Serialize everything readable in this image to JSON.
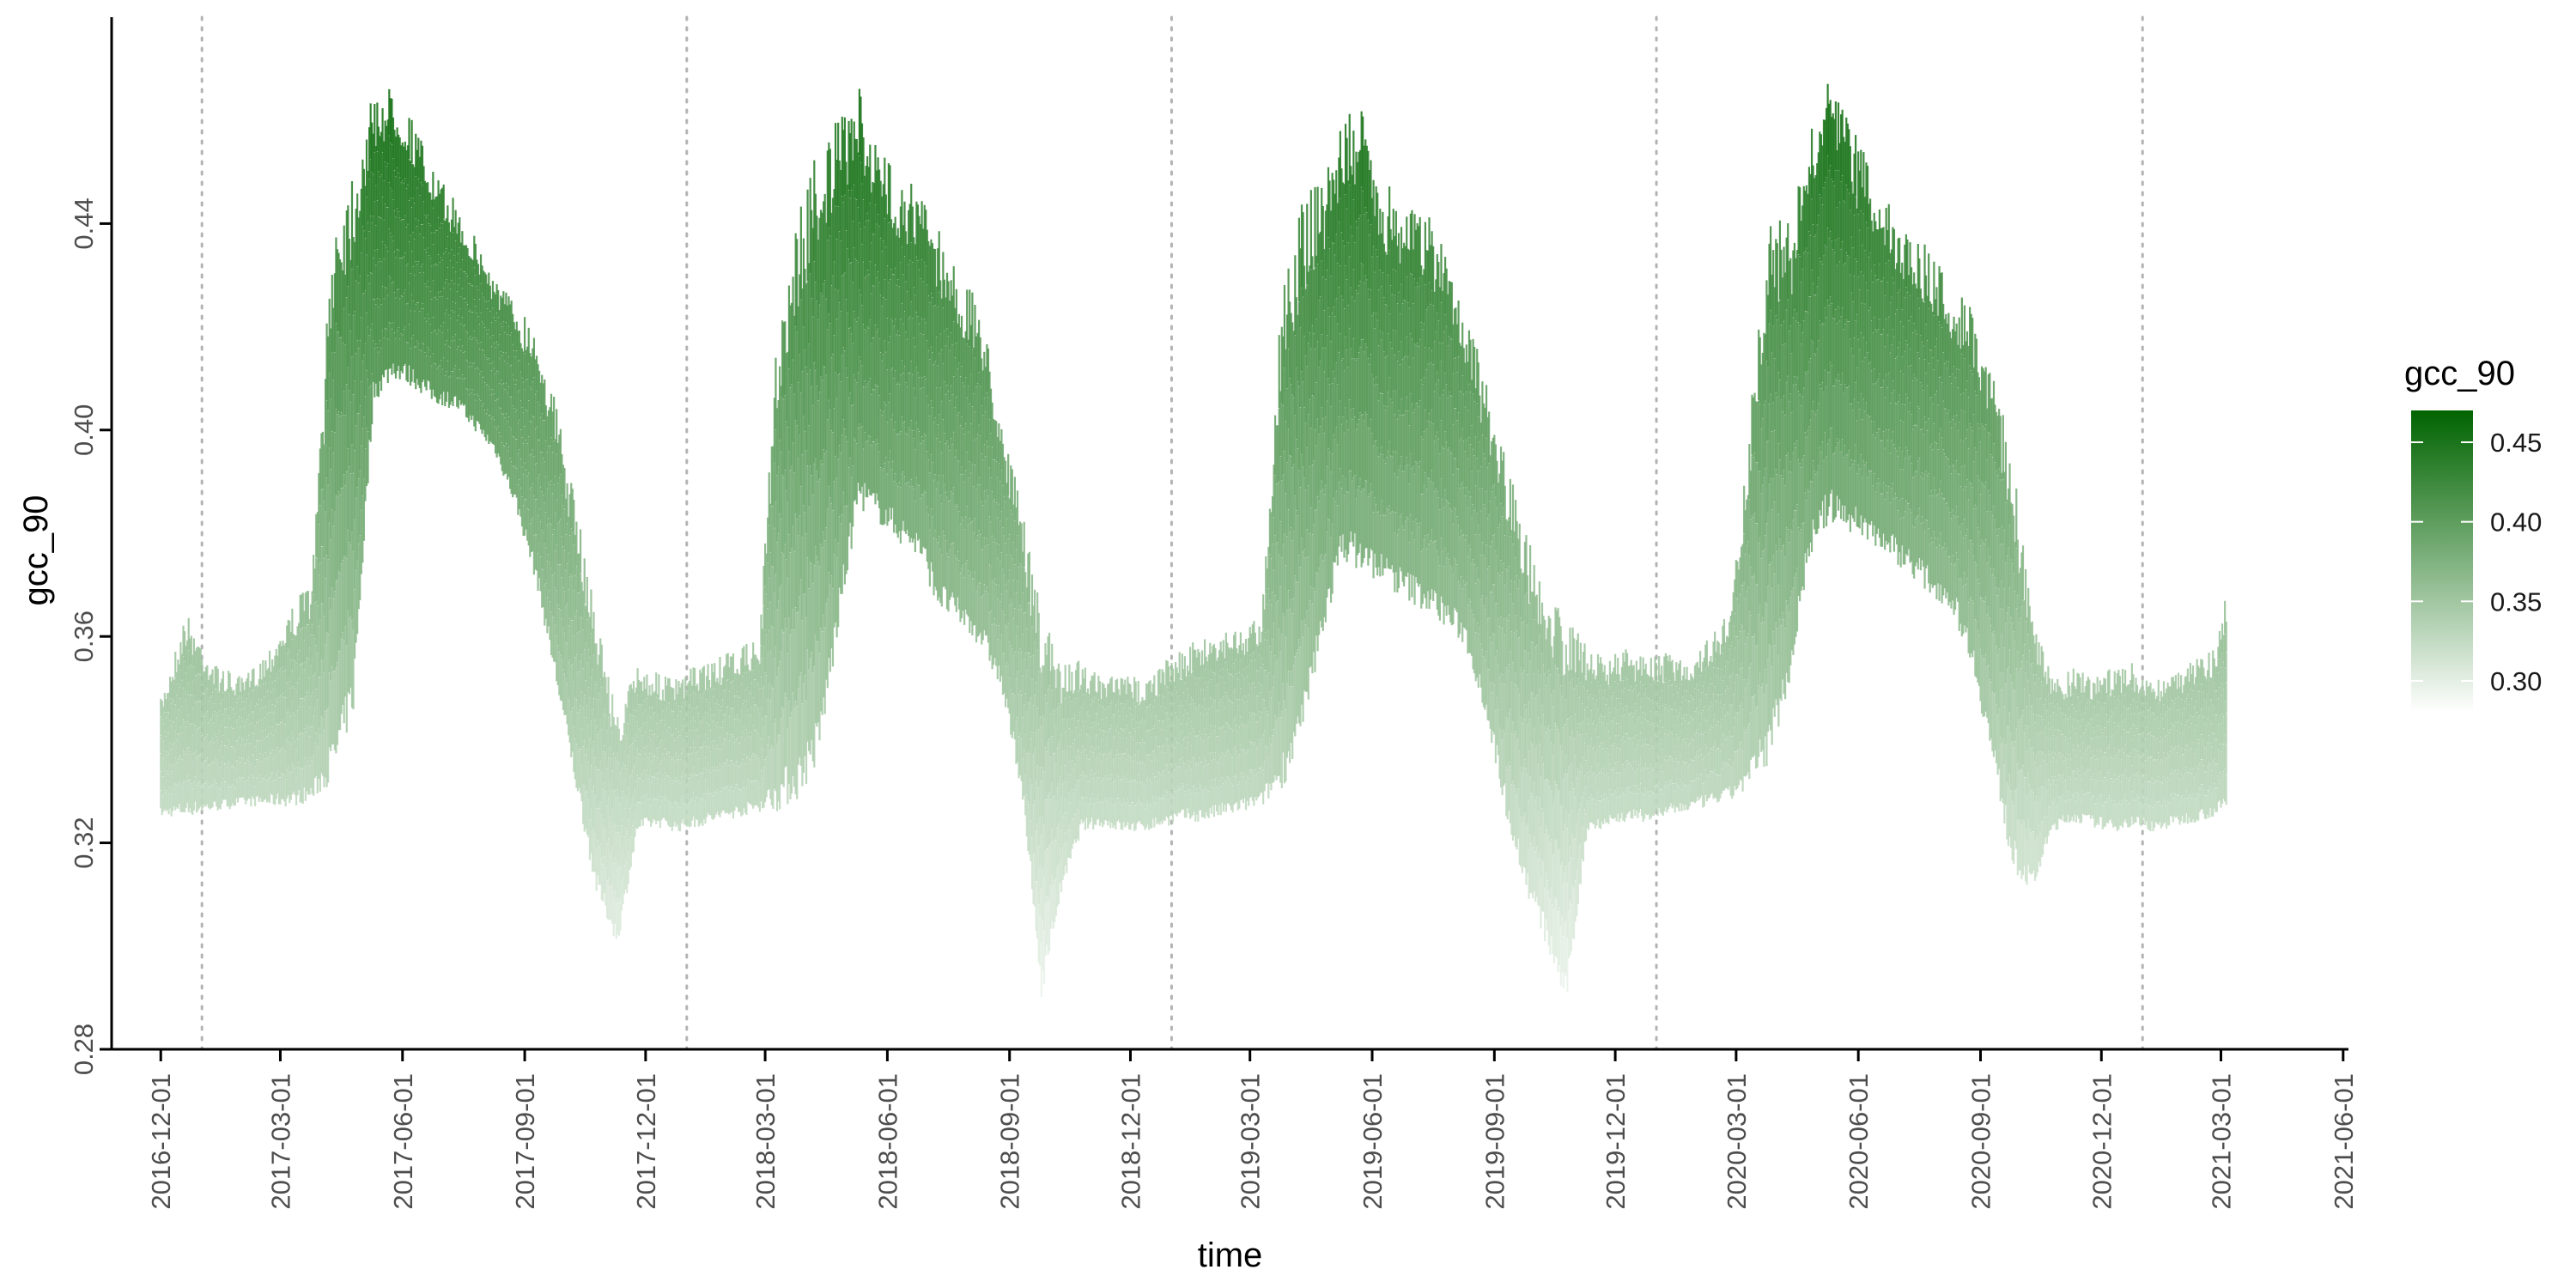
{
  "chart_data": {
    "type": "line",
    "xlabel": "time",
    "ylabel": "gcc_90",
    "xlim": [
      "2016-10-25",
      "2021-06-05"
    ],
    "ylim": [
      0.28,
      0.48
    ],
    "x_ticks": [
      "2016-12-01",
      "2017-03-01",
      "2017-06-01",
      "2017-09-01",
      "2017-12-01",
      "2018-03-01",
      "2018-06-01",
      "2018-09-01",
      "2018-12-01",
      "2019-03-01",
      "2019-06-01",
      "2019-09-01",
      "2019-12-01",
      "2020-03-01",
      "2020-06-01",
      "2020-09-01",
      "2020-12-01",
      "2021-03-01",
      "2021-06-01"
    ],
    "y_ticks": [
      "0.28",
      "0.32",
      "0.36",
      "0.40",
      "0.44"
    ],
    "year_boundaries": [
      "2017-01-01",
      "2018-01-01",
      "2019-01-01",
      "2020-01-01",
      "2021-01-01"
    ],
    "grid": false,
    "legend": {
      "title": "gcc_90",
      "placement": "right",
      "type": "colorbar",
      "labels": [
        "0.45",
        "0.40",
        "0.35",
        "0.30"
      ],
      "range": [
        0.28,
        0.47
      ],
      "color_low": "#ffffff",
      "color_high": "#006400"
    },
    "series": [
      {
        "x": [
          "2016-12-01",
          "2016-12-20",
          "2017-01-10",
          "2017-02-01",
          "2017-02-20",
          "2017-03-10",
          "2017-03-25",
          "2017-04-10",
          "2017-04-25",
          "2017-05-10",
          "2017-05-25",
          "2017-06-10",
          "2017-06-25",
          "2017-07-10",
          "2017-07-25",
          "2017-08-10",
          "2017-08-25",
          "2017-09-10",
          "2017-09-25",
          "2017-10-10",
          "2017-10-25",
          "2017-11-10",
          "2017-11-25",
          "2017-12-10",
          "2017-12-25",
          "2018-01-10",
          "2018-01-25",
          "2018-02-10",
          "2018-02-25",
          "2018-03-10",
          "2018-03-25",
          "2018-04-10",
          "2018-04-25",
          "2018-05-10",
          "2018-05-25",
          "2018-06-10",
          "2018-06-25",
          "2018-07-10",
          "2018-07-25",
          "2018-08-10",
          "2018-08-25",
          "2018-09-10",
          "2018-09-25",
          "2018-10-10",
          "2018-10-25",
          "2018-11-10",
          "2018-11-25",
          "2018-12-10",
          "2018-12-25",
          "2019-01-10",
          "2019-01-25",
          "2019-02-10",
          "2019-02-25",
          "2019-03-10",
          "2019-03-25",
          "2019-04-10",
          "2019-04-25",
          "2019-05-10",
          "2019-05-25",
          "2019-06-10",
          "2019-06-25",
          "2019-07-10",
          "2019-07-25",
          "2019-08-10",
          "2019-08-25",
          "2019-09-10",
          "2019-09-25",
          "2019-10-10",
          "2019-10-25",
          "2019-11-10",
          "2019-11-25",
          "2019-12-10",
          "2019-12-25",
          "2020-01-10",
          "2020-01-25",
          "2020-02-10",
          "2020-02-25",
          "2020-03-10",
          "2020-03-25",
          "2020-04-10",
          "2020-04-25",
          "2020-05-10",
          "2020-05-25",
          "2020-06-10",
          "2020-06-25",
          "2020-07-10",
          "2020-07-25",
          "2020-08-10",
          "2020-08-25",
          "2020-09-10",
          "2020-09-25",
          "2020-10-10",
          "2020-10-25",
          "2020-11-10",
          "2020-11-25",
          "2020-12-10",
          "2020-12-25",
          "2021-01-10",
          "2021-01-25",
          "2021-02-10",
          "2021-02-25",
          "2021-03-05"
        ],
        "min": [
          0.325,
          0.325,
          0.326,
          0.327,
          0.327,
          0.327,
          0.328,
          0.332,
          0.345,
          0.405,
          0.41,
          0.408,
          0.405,
          0.404,
          0.4,
          0.395,
          0.385,
          0.37,
          0.35,
          0.33,
          0.31,
          0.3,
          0.322,
          0.323,
          0.322,
          0.323,
          0.324,
          0.325,
          0.326,
          0.326,
          0.328,
          0.335,
          0.36,
          0.385,
          0.382,
          0.378,
          0.375,
          0.365,
          0.362,
          0.358,
          0.35,
          0.33,
          0.29,
          0.31,
          0.322,
          0.323,
          0.322,
          0.322,
          0.323,
          0.324,
          0.324,
          0.325,
          0.326,
          0.327,
          0.33,
          0.34,
          0.36,
          0.375,
          0.372,
          0.37,
          0.367,
          0.365,
          0.362,
          0.358,
          0.345,
          0.325,
          0.31,
          0.3,
          0.288,
          0.322,
          0.323,
          0.324,
          0.324,
          0.325,
          0.326,
          0.327,
          0.328,
          0.33,
          0.335,
          0.35,
          0.375,
          0.382,
          0.38,
          0.378,
          0.375,
          0.372,
          0.368,
          0.365,
          0.355,
          0.335,
          0.315,
          0.31,
          0.322,
          0.324,
          0.323,
          0.322,
          0.323,
          0.322,
          0.323,
          0.324,
          0.325,
          0.326
        ],
        "max": [
          0.348,
          0.365,
          0.355,
          0.352,
          0.358,
          0.366,
          0.372,
          0.443,
          0.453,
          0.465,
          0.467,
          0.46,
          0.45,
          0.445,
          0.438,
          0.43,
          0.425,
          0.42,
          0.405,
          0.385,
          0.365,
          0.345,
          0.355,
          0.353,
          0.352,
          0.355,
          0.356,
          0.358,
          0.36,
          0.42,
          0.442,
          0.457,
          0.46,
          0.467,
          0.455,
          0.45,
          0.447,
          0.44,
          0.43,
          0.425,
          0.405,
          0.385,
          0.365,
          0.355,
          0.356,
          0.352,
          0.353,
          0.352,
          0.355,
          0.358,
          0.36,
          0.362,
          0.362,
          0.365,
          0.428,
          0.445,
          0.45,
          0.461,
          0.462,
          0.448,
          0.446,
          0.443,
          0.437,
          0.425,
          0.41,
          0.395,
          0.38,
          0.37,
          0.365,
          0.358,
          0.356,
          0.358,
          0.356,
          0.357,
          0.356,
          0.36,
          0.365,
          0.398,
          0.443,
          0.44,
          0.457,
          0.469,
          0.46,
          0.452,
          0.444,
          0.44,
          0.435,
          0.429,
          0.425,
          0.415,
          0.395,
          0.365,
          0.352,
          0.354,
          0.353,
          0.354,
          0.355,
          0.352,
          0.354,
          0.356,
          0.358,
          0.37
        ]
      }
    ]
  }
}
